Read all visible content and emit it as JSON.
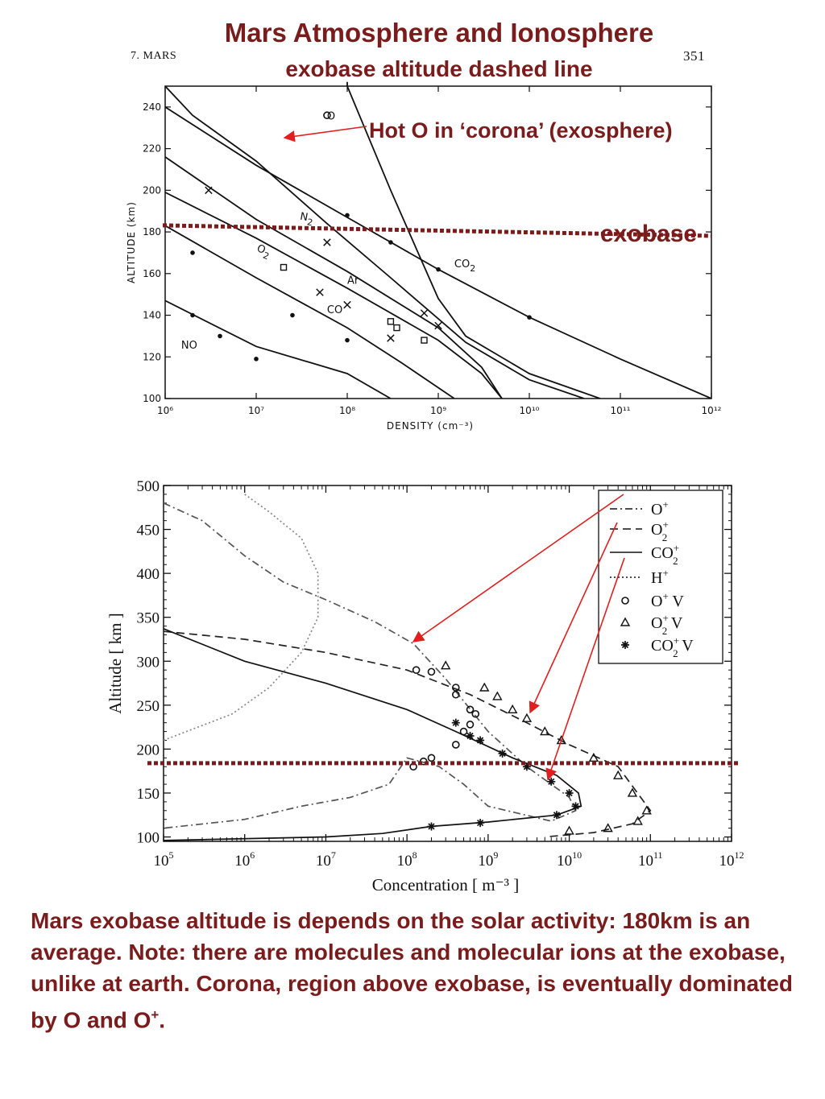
{
  "page": {
    "title": "Mars Atmosphere and Ionosphere",
    "subtitle": "exobase altitude dashed line",
    "page_header_left": "7.   MARS",
    "page_number": "351",
    "hot_o_label": "Hot O in ‘corona’ (exosphere)",
    "exobase_label": "exobase",
    "caption": "Mars exobase altitude is depends on the solar activity: 180km is an average. Note: there are molecules and molecular ions at the exobase, unlike at earth. Corona, region above exobase, is eventually dominated by O and O",
    "caption_sup": "+",
    "caption_end": ".",
    "colors": {
      "title": "#7a1c1c",
      "exobase_line": "#7a1c1c",
      "arrow": "#e02020"
    }
  },
  "chart_data": [
    {
      "type": "line",
      "xlabel": "DENSITY (cm⁻³)",
      "ylabel": "ALTITUDE (km)",
      "xscale": "log",
      "xlim": [
        1000000,
        1000000000000
      ],
      "ylim": [
        100,
        250
      ],
      "xticks": [
        "10⁶",
        "10⁷",
        "10⁸",
        "10⁹",
        "10¹⁰",
        "10¹¹",
        "10¹²"
      ],
      "yticks": [
        "100",
        "120",
        "140",
        "160",
        "180",
        "200",
        "220",
        "240"
      ],
      "exobase_altitude": 182,
      "series": [
        {
          "name": "CO2",
          "points": [
            [
              1000000,
              240
            ],
            [
              10000000.0,
              212
            ],
            [
              100000000.0,
              187
            ],
            [
              1000000000.0,
              162
            ],
            [
              10000000000.0,
              139
            ],
            [
              100000000000.0,
              119
            ],
            [
              1000000000000.0,
              100
            ]
          ]
        },
        {
          "name": "N2",
          "points": [
            [
              1000000,
              250
            ],
            [
              2000000.0,
              236
            ],
            [
              10000000.0,
              214
            ],
            [
              60000000.0,
              184
            ],
            [
              300000000.0,
              158
            ],
            [
              2000000000.0,
              127
            ],
            [
              10000000000.0,
              109
            ],
            [
              40000000000.0,
              100
            ]
          ]
        },
        {
          "name": "Ar",
          "points": [
            [
              1000000,
              216
            ],
            [
              10000000.0,
              186
            ],
            [
              100000000.0,
              161
            ],
            [
              1000000000.0,
              134
            ],
            [
              3000000000.0,
              115
            ],
            [
              5000000000.0,
              100
            ]
          ]
        },
        {
          "name": "CO",
          "points": [
            [
              1000000,
              199
            ],
            [
              10000000.0,
              177
            ],
            [
              100000000.0,
              153
            ],
            [
              1000000000.0,
              128
            ],
            [
              3000000000.0,
              112
            ],
            [
              5000000000.0,
              100
            ]
          ]
        },
        {
          "name": "O2",
          "points": [
            [
              1000000,
              183
            ],
            [
              10000000.0,
              158
            ],
            [
              100000000.0,
              134
            ],
            [
              400000000.0,
              117
            ],
            [
              1500000000.0,
              100
            ]
          ]
        },
        {
          "name": "NO",
          "points": [
            [
              1000000,
              147
            ],
            [
              10000000.0,
              125
            ],
            [
              100000000.0,
              112
            ],
            [
              300000000.0,
              100
            ]
          ]
        },
        {
          "name": "O",
          "points": [
            [
              100000000.0,
              252
            ],
            [
              100000000.0,
              250
            ],
            [
              300000000.0,
              200
            ],
            [
              600000000.0,
              170
            ],
            [
              1000000000.0,
              148
            ],
            [
              2000000000.0,
              130
            ],
            [
              10000000000.0,
              112
            ],
            [
              60000000000.0,
              100
            ]
          ]
        }
      ],
      "markers": [
        {
          "series": "CO2",
          "symbol": "dot",
          "points": [
            [
              100000000.0,
              188
            ],
            [
              300000000.0,
              175
            ],
            [
              1000000000.0,
              162
            ],
            [
              10000000000.0,
              139
            ]
          ]
        },
        {
          "series": "N2",
          "symbol": "cross",
          "points": [
            [
              3000000.0,
              200
            ],
            [
              60000000.0,
              175
            ],
            [
              100000000.0,
              145
            ],
            [
              700000000.0,
              141
            ],
            [
              1000000000.0,
              135
            ]
          ]
        },
        {
          "series": "Ar",
          "symbol": "square",
          "points": [
            [
              20000000.0,
              163
            ],
            [
              300000000.0,
              137
            ],
            [
              350000000.0,
              134
            ],
            [
              700000000.0,
              128
            ]
          ]
        },
        {
          "series": "CO",
          "symbol": "cross",
          "points": [
            [
              50000000.0,
              151
            ],
            [
              300000000.0,
              129
            ]
          ]
        },
        {
          "series": "O2",
          "symbol": "dot",
          "points": [
            [
              2000000.0,
              170
            ],
            [
              25000000.0,
              140
            ],
            [
              100000000.0,
              128
            ]
          ]
        },
        {
          "series": "NO",
          "symbol": "dot",
          "points": [
            [
              2000000.0,
              140
            ],
            [
              4000000.0,
              130
            ],
            [
              10000000.0,
              119
            ]
          ]
        },
        {
          "series": "O",
          "symbol": "circle",
          "points": [
            [
              60000000.0,
              236
            ]
          ]
        }
      ],
      "curve_labels": [
        {
          "text": "N2",
          "at": [
            30000000.0,
            186
          ]
        },
        {
          "text": "CO2",
          "at": [
            1500000000.0,
            163
          ]
        },
        {
          "text": "Ar",
          "at": [
            100000000.0,
            155
          ]
        },
        {
          "text": "CO",
          "at": [
            60000000.0,
            141
          ]
        },
        {
          "text": "O2",
          "at": [
            10000000.0,
            171
          ],
          "pos": "left"
        },
        {
          "text": "NO",
          "at": [
            1500000.0,
            124
          ]
        },
        {
          "text": "O",
          "at": [
            60000000.0,
            234
          ]
        }
      ]
    },
    {
      "type": "line",
      "xlabel": "Concentration  [ m⁻³ ]",
      "ylabel": "Altitude  [ km ]",
      "xscale": "log",
      "xlim": [
        100000,
        1000000000000
      ],
      "ylim": [
        95,
        500
      ],
      "xticks": [
        "10⁵",
        "10⁶",
        "10⁷",
        "10⁸",
        "10⁹",
        "10¹⁰",
        "10¹¹",
        "10¹²"
      ],
      "yticks": [
        "100",
        "150",
        "200",
        "250",
        "300",
        "350",
        "400",
        "450",
        "500"
      ],
      "exobase_altitude": 184,
      "legend": [
        "O⁺",
        "O₂⁺",
        "CO₂⁺",
        "H⁺",
        "O⁺ V",
        "O₂⁺ V",
        "CO₂⁺ V"
      ],
      "legend_position": "top-right",
      "series": [
        {
          "name": "O⁺",
          "style": "dash-dot",
          "points": [
            [
              100000,
              480
            ],
            [
              300000,
              460
            ],
            [
              1000000.0,
              420
            ],
            [
              3000000.0,
              390
            ],
            [
              10000000.0,
              370
            ],
            [
              40000000.0,
              345
            ],
            [
              120000000.0,
              320
            ],
            [
              300000000.0,
              280
            ],
            [
              1000000000.0,
              220
            ],
            [
              3000000000.0,
              180
            ],
            [
              10000000000.0,
              145
            ],
            [
              12000000000.0,
              130
            ],
            [
              6000000000.0,
              118
            ],
            [
              1000000000.0,
              135
            ],
            [
              500000000.0,
              160
            ],
            [
              250000000.0,
              180
            ],
            [
              100000000.0,
              190
            ],
            [
              60000000.0,
              160
            ],
            [
              20000000.0,
              145
            ],
            [
              5000000.0,
              135
            ],
            [
              1000000.0,
              120
            ],
            [
              100000,
              110
            ]
          ]
        },
        {
          "name": "O₂⁺",
          "style": "dashed",
          "points": [
            [
              100000,
              334
            ],
            [
              1000000.0,
              325
            ],
            [
              10000000.0,
              310
            ],
            [
              100000000.0,
              290
            ],
            [
              600000000.0,
              262
            ],
            [
              3000000000.0,
              230
            ],
            [
              10000000000.0,
              205
            ],
            [
              40000000000.0,
              180
            ],
            [
              100000000000.0,
              130
            ],
            [
              60000000000.0,
              115
            ],
            [
              20000000000.0,
              105
            ],
            [
              5000000000.0,
              100
            ]
          ]
        },
        {
          "name": "CO₂⁺",
          "style": "solid",
          "points": [
            [
              100000,
              337
            ],
            [
              1000000.0,
              300
            ],
            [
              10000000.0,
              275
            ],
            [
              100000000.0,
              245
            ],
            [
              400000000.0,
              220
            ],
            [
              2000000000.0,
              190
            ],
            [
              7000000000.0,
              170
            ],
            [
              13000000000.0,
              150
            ],
            [
              14000000000.0,
              135
            ],
            [
              7000000000.0,
              125
            ],
            [
              1000000000.0,
              117
            ],
            [
              200000000.0,
              112
            ],
            [
              50000000.0,
              104
            ],
            [
              10000000.0,
              100
            ],
            [
              100000,
              96
            ]
          ]
        },
        {
          "name": "H⁺",
          "style": "dotted",
          "points": [
            [
              1000000.0,
              490
            ],
            [
              2000000.0,
              470
            ],
            [
              5000000.0,
              440
            ],
            [
              8000000.0,
              400
            ],
            [
              8000000.0,
              350
            ],
            [
              5000000.0,
              310
            ],
            [
              2000000.0,
              270
            ],
            [
              700000,
              240
            ],
            [
              100000,
              210
            ]
          ]
        }
      ],
      "markers": [
        {
          "series": "O⁺ V",
          "symbol": "circle",
          "points": [
            [
              130000000.0,
              290
            ],
            [
              200000000.0,
              288
            ],
            [
              400000000.0,
              270
            ],
            [
              400000000.0,
              262
            ],
            [
              600000000.0,
              245
            ],
            [
              700000000.0,
              240
            ],
            [
              600000000.0,
              228
            ],
            [
              500000000.0,
              220
            ],
            [
              400000000.0,
              205
            ],
            [
              200000000.0,
              190
            ],
            [
              120000000.0,
              180
            ],
            [
              160000000.0,
              186
            ]
          ]
        },
        {
          "series": "O₂⁺ V",
          "symbol": "triangle",
          "points": [
            [
              300000000.0,
              295
            ],
            [
              900000000.0,
              270
            ],
            [
              1300000000.0,
              260
            ],
            [
              2000000000.0,
              245
            ],
            [
              3000000000.0,
              235
            ],
            [
              5000000000.0,
              220
            ],
            [
              8000000000.0,
              210
            ],
            [
              20000000000.0,
              190
            ],
            [
              40000000000.0,
              170
            ],
            [
              60000000000.0,
              150
            ],
            [
              90000000000.0,
              130
            ],
            [
              70000000000.0,
              118
            ],
            [
              30000000000.0,
              110
            ],
            [
              10000000000.0,
              107
            ]
          ]
        },
        {
          "series": "CO₂⁺ V",
          "symbol": "star",
          "points": [
            [
              400000000.0,
              230
            ],
            [
              600000000.0,
              215
            ],
            [
              800000000.0,
              210
            ],
            [
              1500000000.0,
              195
            ],
            [
              3000000000.0,
              180
            ],
            [
              6000000000.0,
              163
            ],
            [
              10000000000.0,
              150
            ],
            [
              12000000000.0,
              135
            ],
            [
              7000000000.0,
              125
            ],
            [
              800000000.0,
              116
            ],
            [
              200000000.0,
              112
            ]
          ]
        }
      ]
    }
  ]
}
